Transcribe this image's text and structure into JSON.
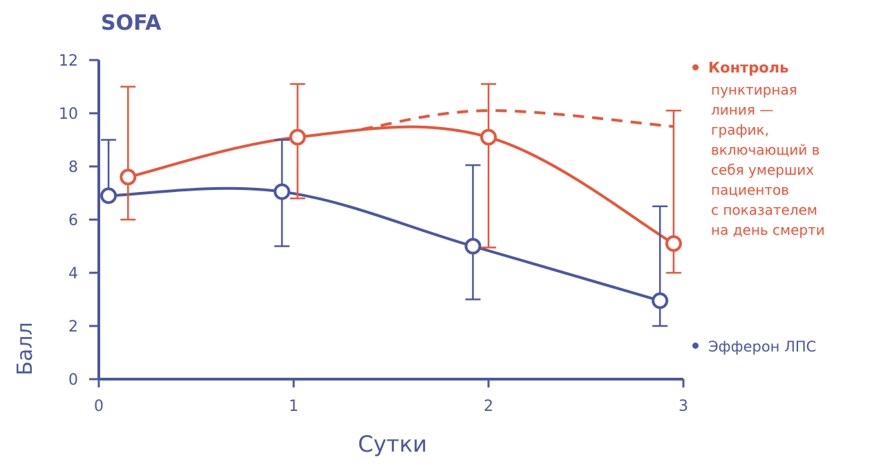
{
  "chart_data": {
    "type": "line",
    "title": "SOFA",
    "xlabel": "Сутки",
    "ylabel": "Балл",
    "xlim": [
      0,
      3
    ],
    "ylim": [
      0,
      12
    ],
    "x_ticks": [
      "0",
      "1",
      "2",
      "3"
    ],
    "y_ticks": [
      "0",
      "2",
      "4",
      "6",
      "8",
      "10",
      "12"
    ],
    "grid": false,
    "legend_position": "right",
    "series": [
      {
        "name": "Контроль",
        "color": "#e8553b",
        "points": [
          {
            "x": 0.15,
            "y": 7.6,
            "low": 6.0,
            "high": 11.0
          },
          {
            "x": 1.02,
            "y": 9.1,
            "low": 6.8,
            "high": 11.1
          },
          {
            "x": 2.0,
            "y": 9.1,
            "low": 4.95,
            "high": 11.1
          },
          {
            "x": 2.95,
            "y": 5.1,
            "low": 4.0,
            "high": 10.1
          }
        ]
      },
      {
        "name": "Эфферон ЛПС",
        "color": "#4b57a0",
        "points": [
          {
            "x": 0.05,
            "y": 6.9,
            "low": 7.0,
            "high": 9.0
          },
          {
            "x": 0.94,
            "y": 7.05,
            "low": 5.0,
            "high": 9.0
          },
          {
            "x": 1.92,
            "y": 5.0,
            "low": 3.0,
            "high": 8.05
          },
          {
            "x": 2.88,
            "y": 2.95,
            "low": 2.0,
            "high": 6.5
          }
        ]
      }
    ],
    "dashed_series": {
      "color": "#e8553b",
      "points": [
        {
          "x": 1.35,
          "y": 9.4
        },
        {
          "x": 2.0,
          "y": 10.1
        },
        {
          "x": 2.95,
          "y": 9.5
        }
      ]
    },
    "legend_note": [
      "пунктирная",
      "линия —",
      "график,",
      "включающий в",
      "себя умерших",
      "пациентов",
      "с показателем",
      "на день смерти"
    ]
  }
}
